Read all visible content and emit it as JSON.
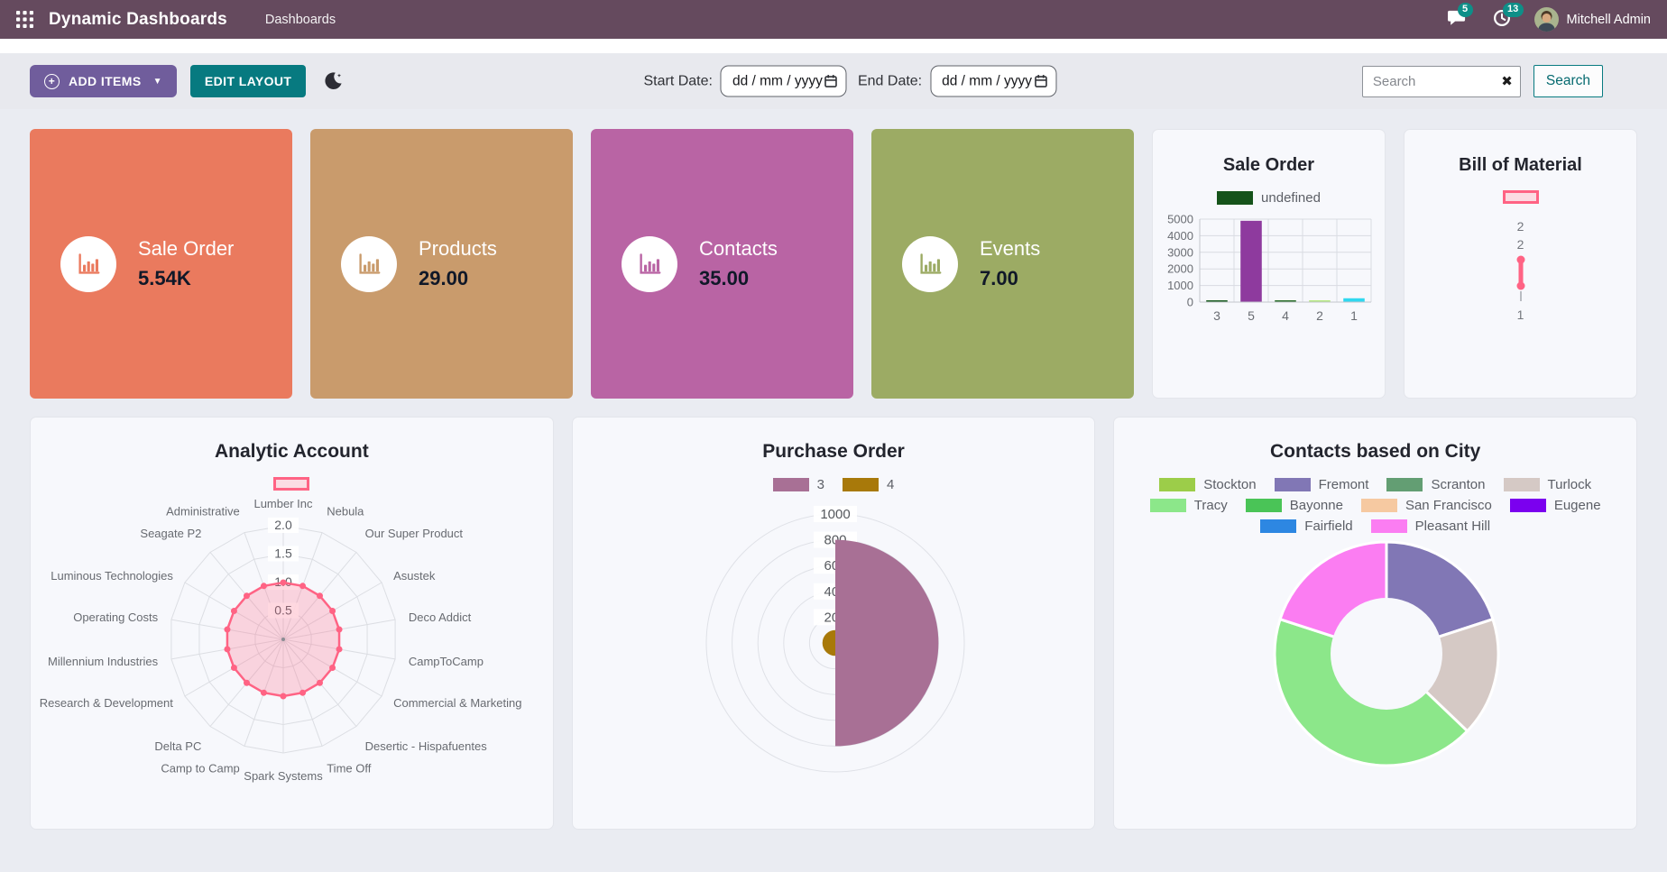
{
  "navbar": {
    "app_title": "Dynamic Dashboards",
    "menu_item": "Dashboards",
    "messages_badge": "5",
    "activities_badge": "13",
    "user_name": "Mitchell Admin",
    "bg_color": "#654a5e",
    "badge_color": "#0e8f88"
  },
  "toolbar": {
    "add_items_label": "ADD ITEMS",
    "add_items_color": "#705d9c",
    "edit_layout_label": "EDIT LAYOUT",
    "edit_layout_color": "#077a80",
    "start_date_label": "Start Date:",
    "end_date_label": "End Date:",
    "date_placeholder": "dd / mm / yyyy",
    "search_placeholder": "Search",
    "search_button_label": "Search"
  },
  "kpis": [
    {
      "title": "Sale Order",
      "value": "5.54K",
      "color": "#ea7a5e"
    },
    {
      "title": "Products",
      "value": "29.00",
      "color": "#c99b6c"
    },
    {
      "title": "Contacts",
      "value": "35.00",
      "color": "#b964a4"
    },
    {
      "title": "Events",
      "value": "7.00",
      "color": "#9cab64"
    }
  ],
  "chart_data": [
    {
      "id": "sale_order_bar",
      "type": "bar",
      "title": "Sale Order",
      "legend": [
        {
          "label": "undefined",
          "color": "#15531a"
        }
      ],
      "categories": [
        "3",
        "5",
        "4",
        "2",
        "1"
      ],
      "values": [
        40,
        4900,
        25,
        60,
        230
      ],
      "bar_colors": [
        "#1a5c20",
        "#8e3a9e",
        "#2a6e2a",
        "#b6e881",
        "#2fd8f0"
      ],
      "yticks": [
        0,
        1000,
        2000,
        3000,
        4000,
        5000
      ],
      "ylim": [
        0,
        5000
      ],
      "grid": true,
      "legend_position": "top"
    },
    {
      "id": "bill_of_material_line",
      "type": "line",
      "title": "Bill of Material",
      "series_color": "#ff6384",
      "legend_swatch": {
        "fill": "#fbdce3",
        "border": "#ff6384"
      },
      "visible_tick_labels": [
        "2",
        "2",
        "1"
      ],
      "values": [
        2,
        1
      ]
    },
    {
      "id": "analytic_account_radar",
      "type": "radar",
      "title": "Analytic Account",
      "labels": [
        "Lumber Inc",
        "Nebula",
        "Our Super Product",
        "Asustek",
        "Deco Addict",
        "CampToCamp",
        "Commercial & Marketing",
        "Desertic - Hispafuentes",
        "Time Off",
        "Spark Systems",
        "Camp to Camp",
        "Delta PC",
        "Research & Development",
        "Millennium Industries",
        "Operating Costs",
        "Luminous Technologies",
        "Seagate P2",
        "Administrative"
      ],
      "values": [
        1,
        1,
        1,
        1,
        1,
        1,
        1,
        1,
        1,
        1,
        1,
        1,
        1,
        1,
        1,
        1,
        1,
        1
      ],
      "rticks": [
        0.5,
        1.0,
        1.5,
        2.0
      ],
      "rlim": [
        0,
        2.0
      ],
      "series_color": "#ff6384",
      "fill_color": "rgba(255,99,132,0.25)",
      "legend_swatch": {
        "fill": "#fbdce3",
        "border": "#ff6384"
      }
    },
    {
      "id": "purchase_order_polar",
      "type": "polar_area",
      "title": "Purchase Order",
      "series": [
        {
          "name": "3",
          "color": "#a87095",
          "value": 800
        },
        {
          "name": "4",
          "color": "#a8790a",
          "value": 100
        }
      ],
      "rticks": [
        200,
        400,
        600,
        800,
        1000
      ],
      "rlim": [
        0,
        1000
      ],
      "legend_position": "top"
    },
    {
      "id": "contacts_city_doughnut",
      "type": "doughnut",
      "title": "Contacts based on City",
      "labels": [
        "Stockton",
        "Fremont",
        "Scranton",
        "Turlock",
        "Tracy",
        "Bayonne",
        "San Francisco",
        "Eugene",
        "Fairfield",
        "Pleasant Hill"
      ],
      "colors": [
        "#9ccd49",
        "#8177b5",
        "#639e73",
        "#d5c9c5",
        "#8ce78a",
        "#4ac457",
        "#f6c9a1",
        "#7b00ef",
        "#2d87e2",
        "#fb7df2"
      ],
      "values": [
        0,
        7,
        0,
        6,
        15,
        0,
        0,
        0,
        0,
        7
      ],
      "legend_position": "top"
    }
  ]
}
